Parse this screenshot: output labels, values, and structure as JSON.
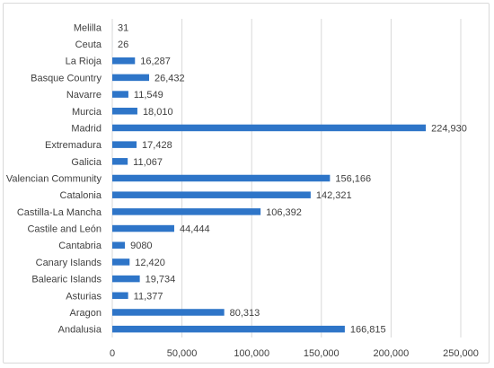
{
  "chart_data": {
    "type": "bar",
    "orientation": "horizontal",
    "title": "",
    "xlabel": "",
    "ylabel": "",
    "categories": [
      "Melilla",
      "Ceuta",
      "La Rioja",
      "Basque Country",
      "Navarre",
      "Murcia",
      "Madrid",
      "Extremadura",
      "Galicia",
      "Valencian Community",
      "Catalonia",
      "Castilla-La Mancha",
      "Castile and León",
      "Cantabria",
      "Canary Islands",
      "Balearic Islands",
      "Asturias",
      "Aragon",
      "Andalusia"
    ],
    "values": [
      31,
      26,
      16287,
      26432,
      11549,
      18010,
      224930,
      17428,
      11067,
      156166,
      142321,
      106392,
      44444,
      9080,
      12420,
      19734,
      11377,
      80313,
      166815
    ],
    "value_labels": [
      "31",
      "26",
      "16,287",
      "26,432",
      "11,549",
      "18,010",
      "224,930",
      "17,428",
      "11,067",
      "156,166",
      "142,321",
      "106,392",
      "44,444",
      "9080",
      "12,420",
      "19,734",
      "11,377",
      "80,313",
      "166,815"
    ],
    "xlim": [
      0,
      250000
    ],
    "xticks": [
      0,
      50000,
      100000,
      150000,
      200000,
      250000
    ],
    "xtick_labels": [
      "0",
      "50,000",
      "100,000",
      "150,000",
      "200,000",
      "250,000"
    ],
    "grid": "vertical",
    "legend": "none",
    "bar_color": "#2E75C8",
    "grid_color": "#d9d9d9",
    "text_color": "#404040"
  }
}
